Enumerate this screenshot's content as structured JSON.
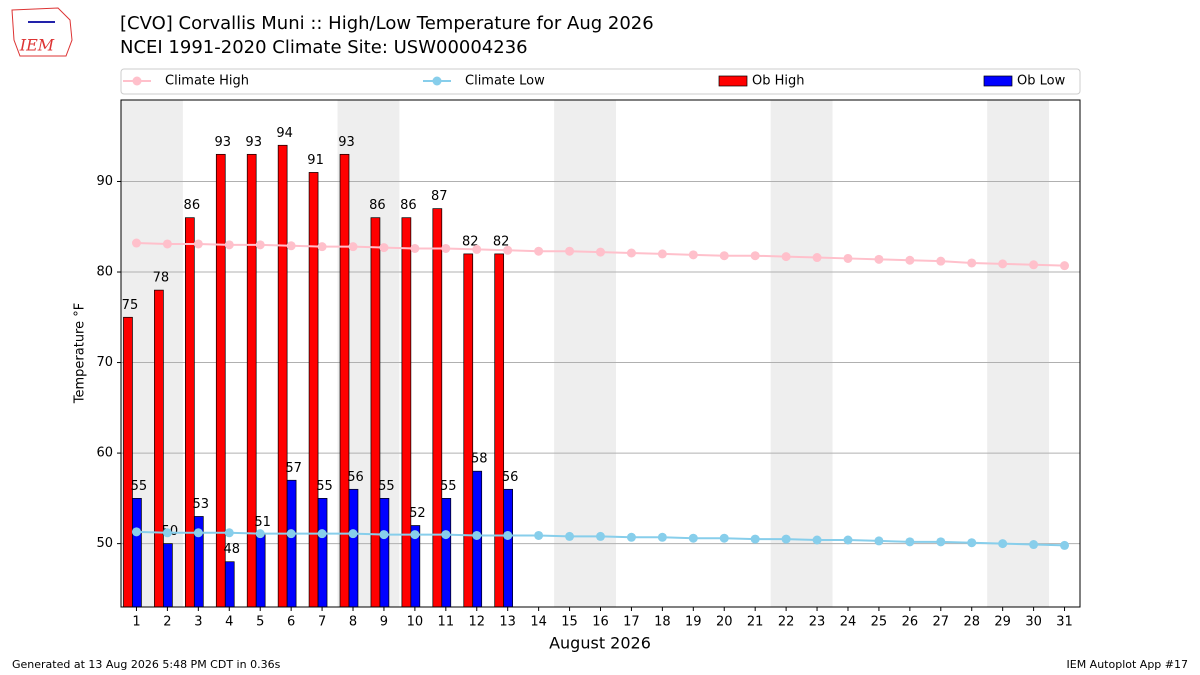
{
  "chart_data": {
    "type": "bar",
    "title": "[CVO] Corvallis Muni :: High/Low Temperature for Aug 2026",
    "subtitle": "NCEI 1991-2020 Climate Site: USW00004236",
    "x_label": "August 2026",
    "y_label": "Temperature °F",
    "footer_left": "Generated at 13 Aug 2026 5:48 PM CDT in 0.36s",
    "footer_right": "IEM Autoplot App #17",
    "logo": "IEM",
    "x": [
      1,
      2,
      3,
      4,
      5,
      6,
      7,
      8,
      9,
      10,
      11,
      12,
      13,
      14,
      15,
      16,
      17,
      18,
      19,
      20,
      21,
      22,
      23,
      24,
      25,
      26,
      27,
      28,
      29,
      30,
      31
    ],
    "xlim": [
      0.5,
      31.5
    ],
    "xticks": [
      1,
      2,
      3,
      4,
      5,
      6,
      7,
      8,
      9,
      10,
      11,
      12,
      13,
      14,
      15,
      16,
      17,
      18,
      19,
      20,
      21,
      22,
      23,
      24,
      25,
      26,
      27,
      28,
      29,
      30,
      31
    ],
    "ylim": [
      43,
      99
    ],
    "yticks": [
      50,
      60,
      70,
      80,
      90
    ],
    "grid": true,
    "legend": "top",
    "series": [
      {
        "name": "Climate High",
        "kind": "line",
        "color": "#ffc0cb",
        "values": [
          83.2,
          83.1,
          83.1,
          83.0,
          83.0,
          82.9,
          82.8,
          82.8,
          82.7,
          82.6,
          82.6,
          82.5,
          82.4,
          82.3,
          82.3,
          82.2,
          82.1,
          82.0,
          81.9,
          81.8,
          81.8,
          81.7,
          81.6,
          81.5,
          81.4,
          81.3,
          81.2,
          81.0,
          80.9,
          80.8,
          80.7
        ]
      },
      {
        "name": "Climate Low",
        "kind": "line",
        "color": "#87ceeb",
        "values": [
          51.3,
          51.2,
          51.2,
          51.2,
          51.1,
          51.1,
          51.1,
          51.1,
          51.0,
          51.0,
          51.0,
          50.9,
          50.9,
          50.9,
          50.8,
          50.8,
          50.7,
          50.7,
          50.6,
          50.6,
          50.5,
          50.5,
          50.4,
          50.4,
          50.3,
          50.2,
          50.2,
          50.1,
          50.0,
          49.9,
          49.8
        ]
      },
      {
        "name": "Ob High",
        "kind": "bar",
        "color": "#ff0000",
        "values": [
          75,
          78,
          86,
          93,
          93,
          94,
          91,
          93,
          86,
          86,
          87,
          82,
          82,
          null,
          null,
          null,
          null,
          null,
          null,
          null,
          null,
          null,
          null,
          null,
          null,
          null,
          null,
          null,
          null,
          null,
          null
        ]
      },
      {
        "name": "Ob Low",
        "kind": "bar",
        "color": "#0000ff",
        "values": [
          55,
          50,
          53,
          48,
          51,
          57,
          55,
          56,
          55,
          52,
          55,
          58,
          56,
          null,
          null,
          null,
          null,
          null,
          null,
          null,
          null,
          null,
          null,
          null,
          null,
          null,
          null,
          null,
          null,
          null,
          null
        ]
      }
    ]
  }
}
